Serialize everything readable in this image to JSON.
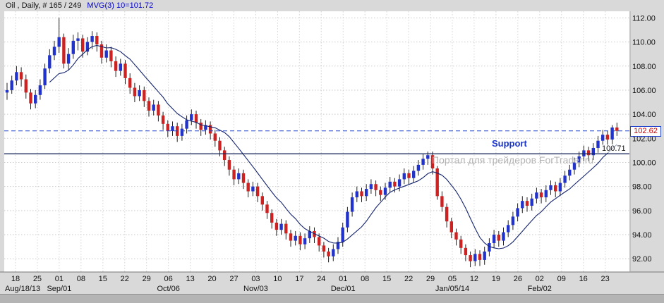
{
  "header": {
    "title": "Oil , Daily, # 165 / 249",
    "ma_label": "MVG(3) 10=101.72"
  },
  "annotations": {
    "support_label": "Support",
    "watermark": "Портал для трейдеров ForTrader.ru",
    "current_price_label": "102.62",
    "support_price_label": "100.71"
  },
  "colors": {
    "up_candle": "#2233cc",
    "down_candle": "#cc2222",
    "wick": "#222222",
    "ma_line": "#14246e",
    "dashed_level": "#2244cc",
    "support_level": "#1a2a5e",
    "grid": "#c9c9c9",
    "background": "#d9d9d9",
    "plot_background": "#ffffff"
  },
  "chart_data": {
    "type": "candlestick",
    "instrument": "Oil",
    "timeframe": "Daily",
    "ylim": [
      90.9,
      112.55
    ],
    "grid": true,
    "y_ticks": [
      {
        "value": 112,
        "label": "112.00"
      },
      {
        "value": 110,
        "label": "110.00"
      },
      {
        "value": 108,
        "label": "108.00"
      },
      {
        "value": 106,
        "label": "106.00"
      },
      {
        "value": 104,
        "label": "104.00"
      },
      {
        "value": 102,
        "label": "102.00"
      },
      {
        "value": 100,
        "label": "100.00"
      },
      {
        "value": 98,
        "label": "98.00"
      },
      {
        "value": 96,
        "label": "96.00"
      },
      {
        "value": 94,
        "label": "94.00"
      },
      {
        "value": 92,
        "label": "92.00"
      }
    ],
    "week_labels": [
      "18",
      "25",
      "01",
      "08",
      "15",
      "22",
      "29",
      "06",
      "13",
      "20",
      "27",
      "03",
      "10",
      "17",
      "24",
      "01",
      "08",
      "15",
      "22",
      "29",
      "05",
      "12",
      "19",
      "26",
      "02",
      "09",
      "16",
      "23"
    ],
    "month_labels": [
      {
        "label": "Aug/18/13",
        "tick": 0
      },
      {
        "label": "Sep/01",
        "tick": 2
      },
      {
        "label": "Oct/06",
        "tick": 7
      },
      {
        "label": "Nov/03",
        "tick": 11
      },
      {
        "label": "Dec/01",
        "tick": 15
      },
      {
        "label": "Jan/05/14",
        "tick": 20
      },
      {
        "label": "Feb/02",
        "tick": 24
      }
    ],
    "levels": {
      "resistance_dashed": 102.62,
      "support": 100.71
    },
    "sma": {
      "period": 10,
      "label_value": 101.72
    },
    "last_price": 102.62,
    "candles": [
      [
        105.8,
        106.6,
        105.2,
        106.0
      ],
      [
        106.0,
        107.2,
        105.7,
        106.8
      ],
      [
        106.8,
        108.0,
        106.4,
        107.5
      ],
      [
        107.5,
        107.9,
        106.3,
        106.9
      ],
      [
        106.9,
        107.3,
        105.3,
        105.8
      ],
      [
        105.8,
        106.1,
        104.4,
        104.9
      ],
      [
        104.9,
        106.0,
        104.5,
        105.6
      ],
      [
        105.6,
        106.9,
        105.2,
        106.4
      ],
      [
        106.4,
        108.2,
        106.1,
        107.8
      ],
      [
        107.8,
        109.4,
        107.4,
        108.9
      ],
      [
        108.9,
        110.1,
        108.5,
        109.6
      ],
      [
        109.6,
        112.0,
        109.1,
        110.4
      ],
      [
        110.4,
        110.7,
        107.8,
        108.2
      ],
      [
        108.2,
        109.5,
        107.7,
        109.0
      ],
      [
        109.0,
        110.6,
        108.6,
        110.1
      ],
      [
        110.1,
        110.8,
        109.3,
        110.3
      ],
      [
        110.3,
        110.6,
        108.7,
        109.2
      ],
      [
        109.2,
        110.4,
        108.9,
        110.0
      ],
      [
        110.0,
        110.9,
        109.4,
        110.5
      ],
      [
        110.5,
        110.8,
        109.2,
        109.8
      ],
      [
        109.8,
        110.1,
        108.2,
        108.7
      ],
      [
        108.7,
        109.8,
        108.3,
        109.3
      ],
      [
        109.3,
        109.6,
        107.9,
        108.4
      ],
      [
        108.4,
        108.8,
        107.1,
        107.6
      ],
      [
        107.6,
        108.6,
        107.2,
        108.2
      ],
      [
        108.2,
        108.5,
        106.5,
        107.0
      ],
      [
        107.0,
        107.4,
        105.7,
        106.2
      ],
      [
        106.2,
        106.6,
        105.0,
        105.5
      ],
      [
        105.5,
        106.4,
        105.1,
        106.0
      ],
      [
        106.0,
        106.3,
        104.6,
        105.1
      ],
      [
        105.1,
        105.4,
        103.8,
        104.3
      ],
      [
        104.3,
        105.2,
        103.9,
        104.8
      ],
      [
        104.8,
        105.1,
        103.4,
        103.9
      ],
      [
        103.9,
        104.2,
        102.7,
        103.2
      ],
      [
        103.2,
        103.5,
        102.1,
        102.6
      ],
      [
        102.6,
        103.4,
        102.2,
        103.0
      ],
      [
        103.0,
        103.3,
        101.7,
        102.2
      ],
      [
        102.2,
        103.2,
        101.8,
        102.8
      ],
      [
        102.8,
        103.9,
        102.4,
        103.5
      ],
      [
        103.5,
        104.4,
        103.1,
        104.0
      ],
      [
        104.0,
        104.3,
        102.8,
        103.3
      ],
      [
        103.3,
        103.6,
        102.2,
        102.7
      ],
      [
        102.7,
        103.5,
        102.3,
        103.1
      ],
      [
        103.1,
        103.4,
        101.9,
        102.4
      ],
      [
        102.4,
        102.7,
        101.3,
        101.8
      ],
      [
        101.8,
        102.1,
        100.5,
        101.0
      ],
      [
        101.0,
        101.3,
        99.7,
        100.2
      ],
      [
        100.2,
        100.5,
        98.9,
        99.4
      ],
      [
        99.4,
        99.7,
        98.1,
        98.6
      ],
      [
        98.6,
        99.5,
        98.2,
        99.1
      ],
      [
        99.1,
        99.4,
        97.8,
        98.3
      ],
      [
        98.3,
        98.6,
        97.1,
        97.6
      ],
      [
        97.6,
        98.4,
        97.2,
        98.0
      ],
      [
        98.0,
        98.3,
        96.7,
        97.2
      ],
      [
        97.2,
        97.5,
        96.0,
        96.5
      ],
      [
        96.5,
        96.8,
        95.3,
        95.8
      ],
      [
        95.8,
        96.1,
        94.5,
        95.0
      ],
      [
        95.0,
        95.3,
        93.9,
        94.4
      ],
      [
        94.4,
        95.3,
        94.0,
        94.9
      ],
      [
        94.9,
        95.2,
        93.6,
        94.1
      ],
      [
        94.1,
        94.4,
        93.0,
        93.5
      ],
      [
        93.5,
        94.3,
        93.1,
        93.9
      ],
      [
        93.9,
        94.2,
        92.7,
        93.2
      ],
      [
        93.2,
        94.1,
        92.8,
        93.7
      ],
      [
        93.7,
        94.7,
        93.3,
        94.3
      ],
      [
        94.3,
        94.6,
        93.3,
        93.8
      ],
      [
        93.8,
        94.1,
        92.6,
        93.1
      ],
      [
        93.1,
        93.4,
        92.1,
        92.6
      ],
      [
        92.6,
        92.9,
        91.7,
        92.2
      ],
      [
        92.2,
        93.2,
        91.8,
        92.8
      ],
      [
        92.8,
        93.8,
        92.4,
        93.4
      ],
      [
        93.4,
        95.0,
        93.0,
        94.6
      ],
      [
        94.6,
        96.3,
        94.2,
        95.9
      ],
      [
        95.9,
        97.5,
        95.5,
        97.1
      ],
      [
        97.1,
        98.0,
        96.7,
        97.6
      ],
      [
        97.6,
        97.9,
        96.7,
        97.2
      ],
      [
        97.2,
        98.2,
        96.8,
        97.8
      ],
      [
        97.8,
        98.6,
        97.4,
        98.2
      ],
      [
        98.2,
        98.5,
        97.2,
        97.7
      ],
      [
        97.7,
        98.0,
        96.8,
        97.3
      ],
      [
        97.3,
        98.3,
        96.9,
        97.9
      ],
      [
        97.9,
        98.8,
        97.5,
        98.4
      ],
      [
        98.4,
        98.7,
        97.5,
        98.0
      ],
      [
        98.0,
        99.0,
        97.6,
        98.6
      ],
      [
        98.6,
        99.5,
        98.2,
        99.1
      ],
      [
        99.1,
        99.4,
        98.2,
        98.7
      ],
      [
        98.7,
        99.7,
        98.3,
        99.3
      ],
      [
        99.3,
        100.2,
        98.9,
        99.8
      ],
      [
        99.8,
        100.7,
        99.4,
        100.3
      ],
      [
        100.3,
        100.9,
        99.8,
        100.6
      ],
      [
        100.6,
        100.9,
        99.0,
        99.5
      ],
      [
        99.5,
        99.7,
        96.9,
        97.2
      ],
      [
        97.2,
        97.6,
        95.9,
        96.3
      ],
      [
        96.3,
        96.6,
        94.6,
        95.1
      ],
      [
        95.1,
        95.4,
        93.7,
        94.2
      ],
      [
        94.2,
        94.5,
        93.1,
        93.6
      ],
      [
        93.6,
        93.9,
        92.4,
        92.9
      ],
      [
        92.9,
        93.2,
        91.8,
        92.3
      ],
      [
        92.3,
        92.6,
        91.3,
        91.8
      ],
      [
        91.8,
        92.8,
        91.4,
        92.4
      ],
      [
        92.4,
        92.7,
        91.4,
        91.9
      ],
      [
        91.9,
        93.0,
        91.5,
        92.6
      ],
      [
        92.6,
        93.7,
        92.2,
        93.3
      ],
      [
        93.3,
        94.4,
        92.9,
        94.0
      ],
      [
        94.0,
        94.3,
        93.0,
        93.5
      ],
      [
        93.5,
        94.6,
        93.1,
        94.2
      ],
      [
        94.2,
        95.2,
        93.8,
        94.8
      ],
      [
        94.8,
        95.9,
        94.4,
        95.5
      ],
      [
        95.5,
        96.6,
        95.1,
        96.2
      ],
      [
        96.2,
        97.2,
        95.8,
        96.8
      ],
      [
        96.8,
        97.1,
        95.9,
        96.4
      ],
      [
        96.4,
        97.4,
        96.0,
        97.0
      ],
      [
        97.0,
        97.9,
        96.6,
        97.5
      ],
      [
        97.5,
        97.8,
        96.6,
        97.1
      ],
      [
        97.1,
        98.1,
        96.7,
        97.7
      ],
      [
        97.7,
        98.5,
        97.3,
        98.1
      ],
      [
        98.1,
        98.4,
        97.1,
        97.6
      ],
      [
        97.6,
        98.7,
        97.2,
        98.3
      ],
      [
        98.3,
        99.3,
        97.9,
        98.9
      ],
      [
        98.9,
        99.8,
        98.5,
        99.4
      ],
      [
        99.4,
        100.4,
        99.0,
        100.0
      ],
      [
        100.0,
        100.9,
        99.6,
        100.5
      ],
      [
        100.5,
        101.4,
        100.1,
        101.0
      ],
      [
        101.0,
        101.3,
        100.1,
        100.6
      ],
      [
        100.6,
        101.6,
        100.2,
        101.2
      ],
      [
        101.2,
        102.2,
        100.8,
        101.8
      ],
      [
        101.8,
        102.7,
        101.4,
        102.3
      ],
      [
        102.3,
        102.6,
        101.4,
        101.9
      ],
      [
        101.9,
        103.1,
        101.5,
        102.9
      ],
      [
        102.9,
        103.3,
        102.2,
        102.62
      ]
    ]
  }
}
